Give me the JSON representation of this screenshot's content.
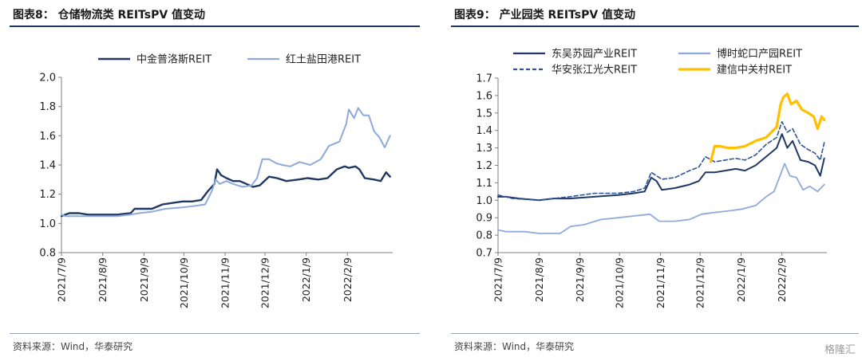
{
  "left": {
    "title": "图表8：  仓储物流类 REITsPV 值变动",
    "source": "资料来源：Wind，华泰研究",
    "chart_data": {
      "type": "line",
      "ylim": [
        0.8,
        2.0
      ],
      "y_ticks": [
        "0.8",
        "1.0",
        "1.2",
        "1.4",
        "1.6",
        "1.8",
        "2.0"
      ],
      "x_ticks": [
        "2021/7/9",
        "2021/8/9",
        "2021/9/9",
        "2021/10/9",
        "2021/11/9",
        "2021/12/9",
        "2022/1/9",
        "2022/2/9"
      ],
      "x_range": [
        "2021-07-09",
        "2022-03-15"
      ],
      "legend_position": "top",
      "series": [
        {
          "name": "中金普洛斯REIT",
          "color": "#1f3864",
          "width": 2.4,
          "dash": "",
          "points": [
            [
              "2021-07-09",
              1.05
            ],
            [
              "2021-07-12",
              1.06
            ],
            [
              "2021-07-15",
              1.07
            ],
            [
              "2021-07-22",
              1.07
            ],
            [
              "2021-07-29",
              1.06
            ],
            [
              "2021-08-09",
              1.06
            ],
            [
              "2021-08-20",
              1.06
            ],
            [
              "2021-08-30",
              1.07
            ],
            [
              "2021-09-02",
              1.1
            ],
            [
              "2021-09-15",
              1.1
            ],
            [
              "2021-09-23",
              1.13
            ],
            [
              "2021-10-08",
              1.15
            ],
            [
              "2021-10-15",
              1.15
            ],
            [
              "2021-10-22",
              1.16
            ],
            [
              "2021-10-27",
              1.22
            ],
            [
              "2021-11-01",
              1.27
            ],
            [
              "2021-11-03",
              1.37
            ],
            [
              "2021-11-06",
              1.33
            ],
            [
              "2021-11-10",
              1.31
            ],
            [
              "2021-11-15",
              1.29
            ],
            [
              "2021-11-20",
              1.29
            ],
            [
              "2021-11-25",
              1.27
            ],
            [
              "2021-11-30",
              1.25
            ],
            [
              "2021-12-05",
              1.26
            ],
            [
              "2021-12-12",
              1.32
            ],
            [
              "2021-12-18",
              1.31
            ],
            [
              "2021-12-25",
              1.29
            ],
            [
              "2022-01-03",
              1.3
            ],
            [
              "2022-01-10",
              1.31
            ],
            [
              "2022-01-18",
              1.3
            ],
            [
              "2022-01-25",
              1.31
            ],
            [
              "2022-02-01",
              1.37
            ],
            [
              "2022-02-07",
              1.39
            ],
            [
              "2022-02-10",
              1.38
            ],
            [
              "2022-02-15",
              1.39
            ],
            [
              "2022-02-18",
              1.37
            ],
            [
              "2022-02-22",
              1.31
            ],
            [
              "2022-03-01",
              1.3
            ],
            [
              "2022-03-06",
              1.29
            ],
            [
              "2022-03-10",
              1.35
            ],
            [
              "2022-03-13",
              1.32
            ]
          ]
        },
        {
          "name": "红土盐田港REIT",
          "color": "#8eaadb",
          "width": 2.0,
          "dash": "",
          "points": [
            [
              "2021-07-09",
              1.06
            ],
            [
              "2021-07-12",
              1.05
            ],
            [
              "2021-07-18",
              1.05
            ],
            [
              "2021-07-29",
              1.05
            ],
            [
              "2021-08-09",
              1.05
            ],
            [
              "2021-08-20",
              1.05
            ],
            [
              "2021-08-30",
              1.06
            ],
            [
              "2021-09-05",
              1.07
            ],
            [
              "2021-09-15",
              1.08
            ],
            [
              "2021-09-25",
              1.1
            ],
            [
              "2021-10-08",
              1.11
            ],
            [
              "2021-10-18",
              1.12
            ],
            [
              "2021-10-25",
              1.13
            ],
            [
              "2021-10-30",
              1.22
            ],
            [
              "2021-11-02",
              1.3
            ],
            [
              "2021-11-05",
              1.27
            ],
            [
              "2021-11-10",
              1.29
            ],
            [
              "2021-11-15",
              1.27
            ],
            [
              "2021-11-22",
              1.25
            ],
            [
              "2021-11-29",
              1.26
            ],
            [
              "2021-12-03",
              1.31
            ],
            [
              "2021-12-07",
              1.44
            ],
            [
              "2021-12-12",
              1.44
            ],
            [
              "2021-12-18",
              1.41
            ],
            [
              "2021-12-22",
              1.4
            ],
            [
              "2021-12-28",
              1.39
            ],
            [
              "2022-01-04",
              1.42
            ],
            [
              "2022-01-12",
              1.4
            ],
            [
              "2022-01-20",
              1.44
            ],
            [
              "2022-01-26",
              1.53
            ],
            [
              "2022-02-03",
              1.56
            ],
            [
              "2022-02-08",
              1.68
            ],
            [
              "2022-02-10",
              1.78
            ],
            [
              "2022-02-14",
              1.72
            ],
            [
              "2022-02-17",
              1.79
            ],
            [
              "2022-02-21",
              1.74
            ],
            [
              "2022-02-25",
              1.74
            ],
            [
              "2022-03-01",
              1.63
            ],
            [
              "2022-03-05",
              1.59
            ],
            [
              "2022-03-09",
              1.52
            ],
            [
              "2022-03-13",
              1.6
            ]
          ]
        }
      ]
    }
  },
  "right": {
    "title": "图表9：  产业园类 REITsPV 值变动",
    "source": "资料来源：Wind，华泰研究",
    "chart_data": {
      "type": "line",
      "ylim": [
        0.7,
        1.7
      ],
      "y_ticks": [
        "0.7",
        "0.8",
        "0.9",
        "1.0",
        "1.1",
        "1.2",
        "1.3",
        "1.4",
        "1.5",
        "1.6",
        "1.7"
      ],
      "x_ticks": [
        "2021/7/9",
        "2021/8/9",
        "2021/9/9",
        "2021/10/9",
        "2021/11/9",
        "2021/12/9",
        "2022/1/9",
        "2022/2/9"
      ],
      "x_range": [
        "2021-07-09",
        "2022-03-15"
      ],
      "legend_position": "top",
      "series": [
        {
          "name": "东吴苏园产业REIT",
          "color": "#1f3864",
          "width": 2.0,
          "dash": "",
          "points": [
            [
              "2021-07-09",
              1.02
            ],
            [
              "2021-07-15",
              1.02
            ],
            [
              "2021-07-25",
              1.01
            ],
            [
              "2021-08-09",
              1.0
            ],
            [
              "2021-08-20",
              1.01
            ],
            [
              "2021-09-01",
              1.01
            ],
            [
              "2021-09-20",
              1.02
            ],
            [
              "2021-10-08",
              1.03
            ],
            [
              "2021-10-20",
              1.04
            ],
            [
              "2021-10-28",
              1.05
            ],
            [
              "2021-11-02",
              1.13
            ],
            [
              "2021-11-06",
              1.11
            ],
            [
              "2021-11-10",
              1.06
            ],
            [
              "2021-11-20",
              1.07
            ],
            [
              "2021-12-01",
              1.09
            ],
            [
              "2021-12-08",
              1.11
            ],
            [
              "2021-12-13",
              1.16
            ],
            [
              "2021-12-20",
              1.16
            ],
            [
              "2021-12-28",
              1.17
            ],
            [
              "2022-01-05",
              1.18
            ],
            [
              "2022-01-12",
              1.17
            ],
            [
              "2022-01-20",
              1.2
            ],
            [
              "2022-01-28",
              1.25
            ],
            [
              "2022-02-05",
              1.3
            ],
            [
              "2022-02-09",
              1.38
            ],
            [
              "2022-02-13",
              1.3
            ],
            [
              "2022-02-17",
              1.34
            ],
            [
              "2022-02-23",
              1.23
            ],
            [
              "2022-03-01",
              1.22
            ],
            [
              "2022-03-06",
              1.2
            ],
            [
              "2022-03-10",
              1.14
            ],
            [
              "2022-03-13",
              1.24
            ]
          ]
        },
        {
          "name": "博时蛇口产园REIT",
          "color": "#8eaadb",
          "width": 1.8,
          "dash": "",
          "points": [
            [
              "2021-07-09",
              0.83
            ],
            [
              "2021-07-15",
              0.82
            ],
            [
              "2021-07-29",
              0.82
            ],
            [
              "2021-08-09",
              0.81
            ],
            [
              "2021-08-25",
              0.81
            ],
            [
              "2021-09-02",
              0.85
            ],
            [
              "2021-09-12",
              0.86
            ],
            [
              "2021-09-25",
              0.89
            ],
            [
              "2021-10-08",
              0.9
            ],
            [
              "2021-10-20",
              0.91
            ],
            [
              "2021-11-01",
              0.92
            ],
            [
              "2021-11-08",
              0.88
            ],
            [
              "2021-11-20",
              0.88
            ],
            [
              "2021-12-01",
              0.89
            ],
            [
              "2021-12-10",
              0.92
            ],
            [
              "2021-12-20",
              0.93
            ],
            [
              "2022-01-01",
              0.94
            ],
            [
              "2022-01-10",
              0.95
            ],
            [
              "2022-01-20",
              0.97
            ],
            [
              "2022-01-28",
              1.02
            ],
            [
              "2022-02-03",
              1.05
            ],
            [
              "2022-02-08",
              1.15
            ],
            [
              "2022-02-11",
              1.21
            ],
            [
              "2022-02-15",
              1.14
            ],
            [
              "2022-02-20",
              1.13
            ],
            [
              "2022-02-25",
              1.06
            ],
            [
              "2022-03-02",
              1.08
            ],
            [
              "2022-03-08",
              1.05
            ],
            [
              "2022-03-13",
              1.09
            ]
          ]
        },
        {
          "name": "华安张江光大REIT",
          "color": "#2f5597",
          "width": 1.6,
          "dash": "5,3",
          "points": [
            [
              "2021-07-09",
              1.03
            ],
            [
              "2021-07-20",
              1.01
            ],
            [
              "2021-08-09",
              1.0
            ],
            [
              "2021-08-20",
              1.01
            ],
            [
              "2021-09-01",
              1.02
            ],
            [
              "2021-09-20",
              1.04
            ],
            [
              "2021-10-08",
              1.04
            ],
            [
              "2021-10-20",
              1.05
            ],
            [
              "2021-10-28",
              1.07
            ],
            [
              "2021-11-02",
              1.16
            ],
            [
              "2021-11-06",
              1.14
            ],
            [
              "2021-11-10",
              1.12
            ],
            [
              "2021-11-20",
              1.13
            ],
            [
              "2021-12-01",
              1.17
            ],
            [
              "2021-12-08",
              1.19
            ],
            [
              "2021-12-13",
              1.25
            ],
            [
              "2021-12-20",
              1.22
            ],
            [
              "2021-12-28",
              1.23
            ],
            [
              "2022-01-05",
              1.24
            ],
            [
              "2022-01-12",
              1.23
            ],
            [
              "2022-01-20",
              1.26
            ],
            [
              "2022-01-28",
              1.32
            ],
            [
              "2022-02-05",
              1.36
            ],
            [
              "2022-02-09",
              1.45
            ],
            [
              "2022-02-13",
              1.39
            ],
            [
              "2022-02-17",
              1.41
            ],
            [
              "2022-02-23",
              1.32
            ],
            [
              "2022-03-01",
              1.29
            ],
            [
              "2022-03-06",
              1.27
            ],
            [
              "2022-03-10",
              1.23
            ],
            [
              "2022-03-13",
              1.33
            ]
          ]
        },
        {
          "name": "建信中关村REIT",
          "color": "#ffc000",
          "width": 3.2,
          "dash": "",
          "points": [
            [
              "2021-12-17",
              1.22
            ],
            [
              "2021-12-20",
              1.31
            ],
            [
              "2021-12-24",
              1.31
            ],
            [
              "2021-12-30",
              1.3
            ],
            [
              "2022-01-05",
              1.3
            ],
            [
              "2022-01-12",
              1.31
            ],
            [
              "2022-01-20",
              1.34
            ],
            [
              "2022-01-28",
              1.36
            ],
            [
              "2022-02-05",
              1.42
            ],
            [
              "2022-02-08",
              1.55
            ],
            [
              "2022-02-10",
              1.59
            ],
            [
              "2022-02-13",
              1.61
            ],
            [
              "2022-02-16",
              1.55
            ],
            [
              "2022-02-20",
              1.57
            ],
            [
              "2022-02-24",
              1.52
            ],
            [
              "2022-03-01",
              1.5
            ],
            [
              "2022-03-05",
              1.48
            ],
            [
              "2022-03-08",
              1.41
            ],
            [
              "2022-03-11",
              1.48
            ],
            [
              "2022-03-13",
              1.46
            ]
          ]
        }
      ]
    }
  },
  "watermark": "格隆汇"
}
